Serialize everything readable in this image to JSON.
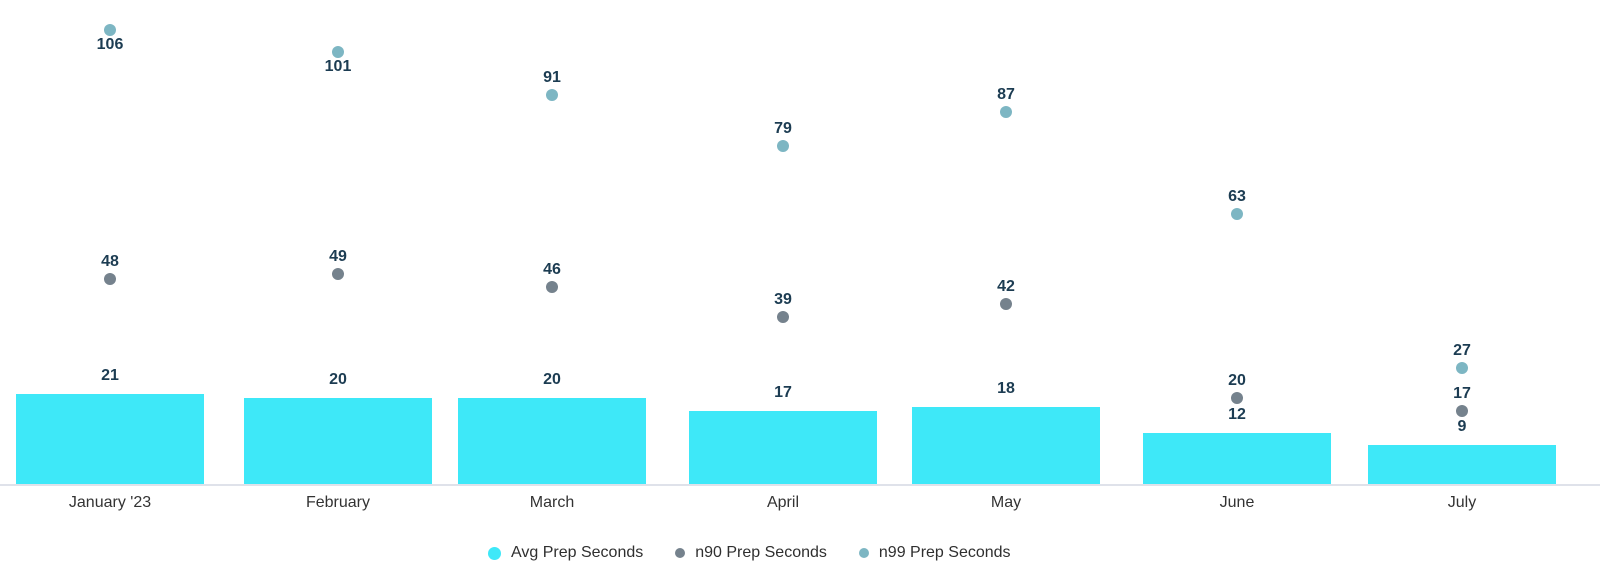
{
  "chart_data": {
    "type": "bar",
    "subtype": "combo-bar-scatter",
    "categories": [
      "January '23",
      "February",
      "March",
      "April",
      "May",
      "June",
      "July"
    ],
    "series": [
      {
        "name": "Avg Prep Seconds",
        "render": "bar",
        "color": "#3ee8f8",
        "values": [
          21,
          20,
          20,
          17,
          18,
          12,
          9
        ]
      },
      {
        "name": "n90 Prep Seconds",
        "render": "scatter",
        "color": "#75828d",
        "values": [
          48,
          49,
          46,
          39,
          42,
          20,
          17
        ],
        "label_positions": [
          "above",
          "above",
          "above",
          "above",
          "above",
          "above",
          "above"
        ]
      },
      {
        "name": "n99 Prep Seconds",
        "render": "scatter",
        "color": "#7db6c3",
        "values": [
          106,
          101,
          91,
          79,
          87,
          63,
          27
        ],
        "label_positions": [
          "below",
          "below",
          "above",
          "above",
          "above",
          "above",
          "above"
        ]
      }
    ],
    "title": "",
    "xlabel": "",
    "ylabel": "",
    "ylim": [
      0,
      113
    ],
    "grid": false,
    "legend_position": "bottom",
    "annotation_color": "#1c3c52",
    "axis_label_color": "#333333",
    "axis_line_color": "#dfe2ea",
    "background_color": "#ffffff"
  }
}
